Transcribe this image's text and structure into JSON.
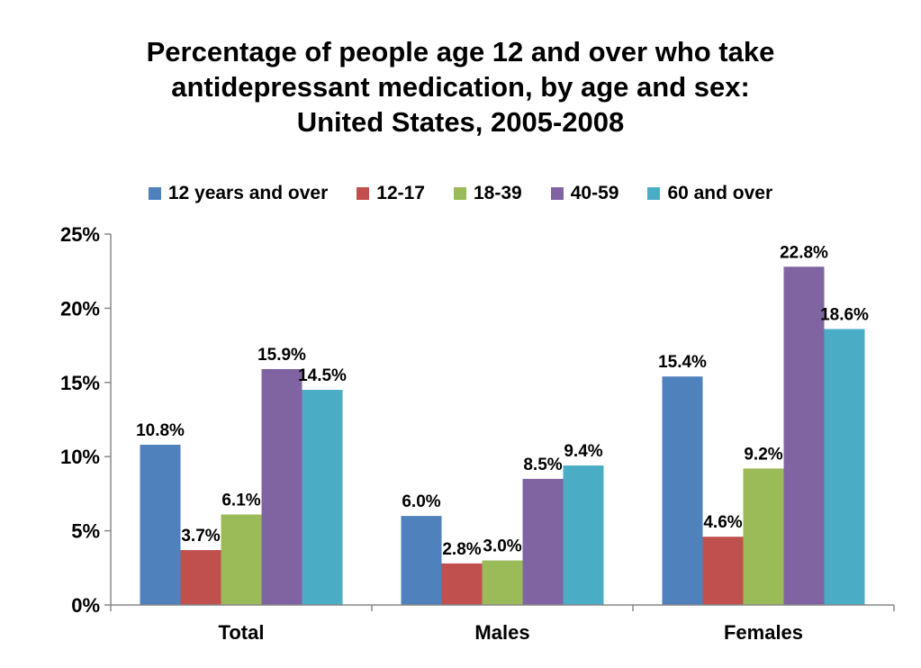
{
  "chart_data": {
    "type": "bar",
    "title_lines": [
      "Percentage of people age 12 and over who take",
      "antidepressant medication, by age and sex:",
      "United States, 2005-2008"
    ],
    "categories": [
      "Total",
      "Males",
      "Females"
    ],
    "series": [
      {
        "name": "12 years and over",
        "color": "#4F81BD",
        "values": [
          10.8,
          6.0,
          15.4
        ],
        "labels": [
          "10.8%",
          "6.0%",
          "15.4%"
        ]
      },
      {
        "name": "12-17",
        "color": "#C0504D",
        "values": [
          3.7,
          2.8,
          4.6
        ],
        "labels": [
          "3.7%",
          "2.8%",
          "4.6%"
        ]
      },
      {
        "name": "18-39",
        "color": "#9BBB59",
        "values": [
          6.1,
          3.0,
          9.2
        ],
        "labels": [
          "6.1%",
          "3.0%",
          "9.2%"
        ]
      },
      {
        "name": "40-59",
        "color": "#8064A2",
        "values": [
          15.9,
          8.5,
          22.8
        ],
        "labels": [
          "15.9%",
          "8.5%",
          "22.8%"
        ]
      },
      {
        "name": "60 and over",
        "color": "#4BACC6",
        "values": [
          14.5,
          9.4,
          18.6
        ],
        "labels": [
          "14.5%",
          "9.4%",
          "18.6%"
        ]
      }
    ],
    "yticks": [
      {
        "value": 0,
        "label": "0%"
      },
      {
        "value": 5,
        "label": "5%"
      },
      {
        "value": 10,
        "label": "10%"
      },
      {
        "value": 15,
        "label": "15%"
      },
      {
        "value": 20,
        "label": "20%"
      },
      {
        "value": 25,
        "label": "25%"
      }
    ],
    "ylim": [
      0,
      25
    ],
    "xlabel": "",
    "ylabel": "",
    "grid": false,
    "legend_position": "top"
  }
}
